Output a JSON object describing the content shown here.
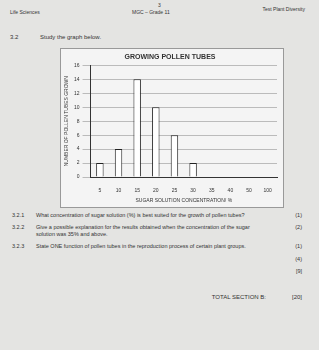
{
  "header": {
    "page": "3",
    "subject": "Life Sciences",
    "school": "MGC – Grade 11",
    "test": "Test Plant Diversity"
  },
  "question": {
    "number": "3.2",
    "text": "Study the graph below."
  },
  "chart_data": {
    "type": "bar",
    "title": "GROWING POLLEN TUBES",
    "x_label": "SUGAR SOLUTION CONCENTRATION/ %",
    "y_label": "NUMBER OF POLLEN TUBES GROWN",
    "categories": [
      "5",
      "10",
      "15",
      "20",
      "25",
      "30",
      "35",
      "40",
      "50",
      "100"
    ],
    "values": [
      2,
      4,
      14,
      10,
      6,
      2,
      0,
      0,
      0,
      0
    ],
    "color": "#ffffff",
    "ylim": [
      0,
      16
    ],
    "yticks": [
      0,
      2,
      4,
      6,
      8,
      10,
      12,
      14,
      16
    ],
    "grid": true
  },
  "questions": [
    {
      "number": "3.2.1",
      "text": "What concentration of sugar solution (%) is best suited for the growth of pollen tubes?",
      "marks": [
        "(1)"
      ]
    },
    {
      "number": "3.2.2",
      "text": "Give a possible explanation for the results obtained when the concentration of the sugar solution was 35% and above.",
      "marks": [
        "(2)"
      ]
    },
    {
      "number": "3.2.3",
      "text": "State ONE function of pollen tubes in the reproduction process of certain plant groups.",
      "marks": [
        "(1)",
        "(4)"
      ]
    }
  ],
  "subtotal": "[9]",
  "total": {
    "label": "TOTAL SECTION B:",
    "marks": "[20]"
  }
}
